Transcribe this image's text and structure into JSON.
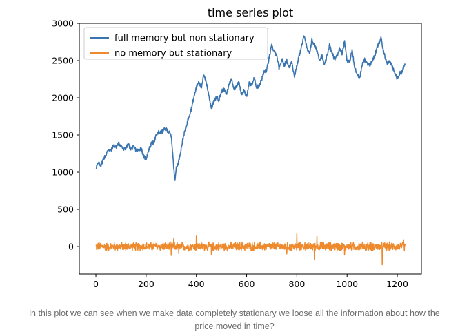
{
  "chart_data": {
    "type": "line",
    "title": "time series plot",
    "xlabel": "",
    "ylabel": "",
    "xlim": [
      -66,
      1296
    ],
    "ylim": [
      -370,
      3000
    ],
    "xticks": [
      0,
      200,
      400,
      600,
      800,
      1000,
      1200
    ],
    "yticks": [
      0,
      500,
      1000,
      1500,
      2000,
      2500,
      3000
    ],
    "grid": false,
    "legend_position": "top-left",
    "n_points": 1232,
    "series": [
      {
        "name": "full memory but non stationary",
        "color": "#3a75b0",
        "values": [
          [
            0,
            1060
          ],
          [
            10,
            1120
          ],
          [
            20,
            1095
          ],
          [
            30,
            1180
          ],
          [
            40,
            1230
          ],
          [
            50,
            1310
          ],
          [
            60,
            1290
          ],
          [
            70,
            1360
          ],
          [
            80,
            1340
          ],
          [
            90,
            1385
          ],
          [
            100,
            1360
          ],
          [
            110,
            1300
          ],
          [
            120,
            1330
          ],
          [
            130,
            1370
          ],
          [
            140,
            1310
          ],
          [
            150,
            1340
          ],
          [
            160,
            1300
          ],
          [
            170,
            1290
          ],
          [
            180,
            1330
          ],
          [
            190,
            1210
          ],
          [
            200,
            1180
          ],
          [
            210,
            1300
          ],
          [
            220,
            1380
          ],
          [
            230,
            1400
          ],
          [
            240,
            1490
          ],
          [
            250,
            1540
          ],
          [
            260,
            1530
          ],
          [
            270,
            1570
          ],
          [
            280,
            1580
          ],
          [
            290,
            1540
          ],
          [
            300,
            1490
          ],
          [
            305,
            1300
          ],
          [
            310,
            1050
          ],
          [
            315,
            910
          ],
          [
            320,
            1050
          ],
          [
            330,
            1150
          ],
          [
            340,
            1330
          ],
          [
            350,
            1500
          ],
          [
            360,
            1620
          ],
          [
            370,
            1750
          ],
          [
            380,
            1850
          ],
          [
            390,
            2000
          ],
          [
            400,
            2140
          ],
          [
            410,
            2230
          ],
          [
            420,
            2120
          ],
          [
            430,
            2320
          ],
          [
            440,
            2200
          ],
          [
            450,
            2030
          ],
          [
            460,
            1860
          ],
          [
            470,
            1950
          ],
          [
            480,
            2010
          ],
          [
            490,
            1970
          ],
          [
            500,
            2090
          ],
          [
            510,
            2110
          ],
          [
            520,
            2050
          ],
          [
            530,
            2180
          ],
          [
            540,
            2250
          ],
          [
            550,
            2120
          ],
          [
            560,
            2170
          ],
          [
            570,
            2200
          ],
          [
            580,
            2050
          ],
          [
            590,
            2100
          ],
          [
            600,
            2010
          ],
          [
            610,
            2200
          ],
          [
            620,
            2170
          ],
          [
            630,
            2260
          ],
          [
            640,
            2140
          ],
          [
            650,
            2160
          ],
          [
            660,
            2250
          ],
          [
            670,
            2350
          ],
          [
            680,
            2370
          ],
          [
            690,
            2540
          ],
          [
            700,
            2700
          ],
          [
            710,
            2620
          ],
          [
            720,
            2560
          ],
          [
            730,
            2380
          ],
          [
            740,
            2520
          ],
          [
            750,
            2440
          ],
          [
            760,
            2500
          ],
          [
            770,
            2400
          ],
          [
            780,
            2500
          ],
          [
            790,
            2280
          ],
          [
            800,
            2430
          ],
          [
            810,
            2580
          ],
          [
            820,
            2700
          ],
          [
            830,
            2850
          ],
          [
            840,
            2660
          ],
          [
            850,
            2590
          ],
          [
            860,
            2780
          ],
          [
            870,
            2700
          ],
          [
            880,
            2640
          ],
          [
            890,
            2520
          ],
          [
            900,
            2560
          ],
          [
            910,
            2430
          ],
          [
            920,
            2560
          ],
          [
            930,
            2710
          ],
          [
            940,
            2600
          ],
          [
            950,
            2520
          ],
          [
            960,
            2560
          ],
          [
            970,
            2670
          ],
          [
            980,
            2600
          ],
          [
            990,
            2760
          ],
          [
            1000,
            2500
          ],
          [
            1010,
            2480
          ],
          [
            1020,
            2640
          ],
          [
            1030,
            2400
          ],
          [
            1040,
            2330
          ],
          [
            1050,
            2270
          ],
          [
            1060,
            2440
          ],
          [
            1070,
            2510
          ],
          [
            1080,
            2470
          ],
          [
            1090,
            2430
          ],
          [
            1100,
            2500
          ],
          [
            1110,
            2560
          ],
          [
            1120,
            2680
          ],
          [
            1130,
            2750
          ],
          [
            1135,
            2820
          ],
          [
            1140,
            2700
          ],
          [
            1150,
            2560
          ],
          [
            1160,
            2470
          ],
          [
            1170,
            2500
          ],
          [
            1180,
            2410
          ],
          [
            1190,
            2330
          ],
          [
            1200,
            2260
          ],
          [
            1210,
            2330
          ],
          [
            1220,
            2350
          ],
          [
            1231,
            2460
          ]
        ]
      },
      {
        "name": "no memory but stationary",
        "color": "#ee8a2e",
        "noise_amplitude": 45,
        "spikes": [
          [
            300,
            -120
          ],
          [
            310,
            110
          ],
          [
            330,
            -95
          ],
          [
            400,
            150
          ],
          [
            460,
            -110
          ],
          [
            760,
            -100
          ],
          [
            800,
            170
          ],
          [
            870,
            -180
          ],
          [
            880,
            140
          ],
          [
            990,
            -115
          ],
          [
            1140,
            -245
          ],
          [
            1225,
            90
          ]
        ]
      }
    ]
  },
  "caption": {
    "line1": "in this plot we can see when we make data completely stationary we loose all the information about how the",
    "line2": "price moved in time?"
  }
}
